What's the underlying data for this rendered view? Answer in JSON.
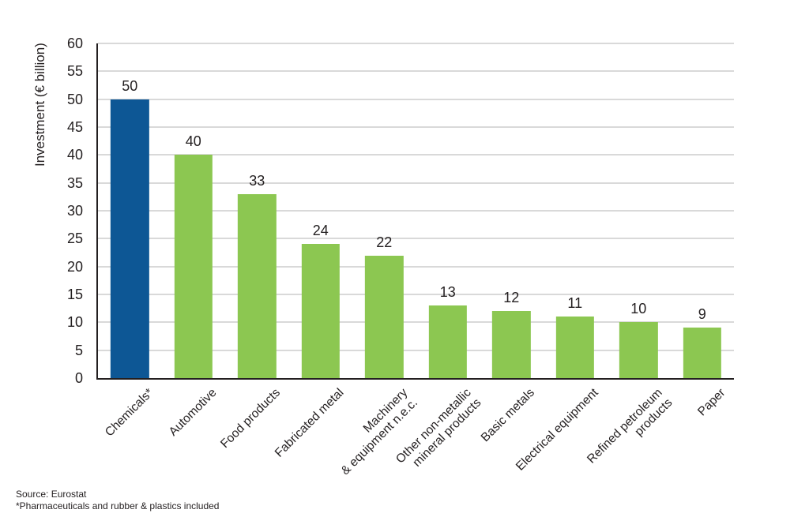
{
  "figure": {
    "background_color": "#ffffff",
    "text_color": "#231f20",
    "grid_color": "#d9d9d9",
    "axis_color": "#231f20",
    "highlight_bar_color": "#0d5795",
    "default_bar_color": "#8cc751"
  },
  "chart_data": {
    "type": "bar",
    "title": "",
    "xlabel": "",
    "ylabel": "Investment (€ billion)",
    "ylim": [
      0,
      60
    ],
    "ytick_step": 5,
    "yticks": [
      0,
      5,
      10,
      15,
      20,
      25,
      30,
      35,
      40,
      45,
      50,
      55,
      60
    ],
    "grid": "horizontal",
    "legend": "none",
    "categories": [
      "Chemicals*",
      "Automotive",
      "Food products",
      "Fabricated metal",
      "Machinery\n& equipment n.e.c.",
      "Other non-metallic\nmineral products",
      "Basic metals",
      "Electrical equipment",
      "Refined petroleum\nproducts",
      "Paper"
    ],
    "values": [
      50,
      40,
      33,
      24,
      22,
      13,
      12,
      11,
      10,
      9
    ],
    "data_labels": [
      "50",
      "40",
      "33",
      "24",
      "22",
      "13",
      "12",
      "11",
      "10",
      "9"
    ],
    "bar_colors": [
      "#0d5795",
      "#8cc751",
      "#8cc751",
      "#8cc751",
      "#8cc751",
      "#8cc751",
      "#8cc751",
      "#8cc751",
      "#8cc751",
      "#8cc751"
    ]
  },
  "footer": {
    "source": "Source: Eurostat",
    "note": "*Pharmaceuticals and rubber & plastics included"
  }
}
